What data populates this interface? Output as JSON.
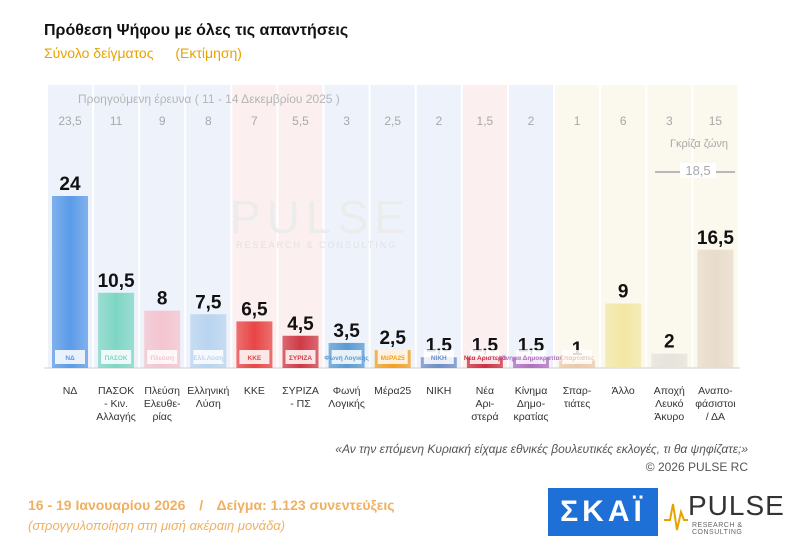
{
  "header": {
    "title": "Πρόθεση Ψήφου με όλες τις απαντήσεις",
    "subtitle_left": "Σύνολο δείγματος",
    "subtitle_right": "(Εκτίμηση)"
  },
  "previous_survey_label": "Προηγούμενη έρευνα ( 11 - 14 Δεκεμβρίου 2025 )",
  "grey_zone": {
    "label": "Γκρίζα ζώνη",
    "value": "18,5"
  },
  "watermark": {
    "word": "PULSE",
    "sub": "RESEARCH & CONSULTING"
  },
  "question": "«Αν την επόμενη Κυριακή είχαμε εθνικές βουλευτικές εκλογές, τι θα ψηφίζατε;»",
  "copyright": "© 2026 PULSE RC",
  "footer": {
    "dates": "16 - 19 Ιανουαρίου 2026",
    "separator": "/",
    "sample": "Δείγμα: 1.123 συνεντεύξεις",
    "note": "(στρογγυλοποίηση στη μισή ακέραιη μονάδα)"
  },
  "logos": {
    "skai": "ΣΚΑΪ",
    "pulse": "PULSE",
    "pulse_sub": "RESEARCH & CONSULTING"
  },
  "colors": {
    "accent_orange": "#e8a200",
    "band_blue": "#eef3fb",
    "band_cream": "#fbf8ee",
    "band_pink": "#fbeff0"
  },
  "chart_data": {
    "type": "bar",
    "title": "Πρόθεση Ψήφου με όλες τις απαντήσεις",
    "categories": [
      "ΝΔ",
      "ΠΑΣΟΚ - Κιν. Αλλαγής",
      "Πλεύση Ελευθε- ρίας",
      "Ελληνική Λύση",
      "ΚΚΕ",
      "ΣΥΡΙΖΑ - ΠΣ",
      "Φωνή Λογικής",
      "Μέρα25",
      "ΝΙΚΗ",
      "Νέα Αρι- στερά",
      "Κίνημα Δημο- κρατίας",
      "Σπαρ- τιάτες",
      "Άλλο",
      "Αποχή Λευκό Άκυρο",
      "Αναπο- φάσιστοι / ΔΑ"
    ],
    "category_lines": [
      [
        "ΝΔ"
      ],
      [
        "ΠΑΣΟΚ",
        "- Κιν.",
        "Αλλαγής"
      ],
      [
        "Πλεύση",
        "Ελευθε-",
        "ρίας"
      ],
      [
        "Ελληνική",
        "Λύση"
      ],
      [
        "ΚΚΕ"
      ],
      [
        "ΣΥΡΙΖΑ",
        "- ΠΣ"
      ],
      [
        "Φωνή",
        "Λογικής"
      ],
      [
        "Μέρα25"
      ],
      [
        "ΝΙΚΗ"
      ],
      [
        "Νέα",
        "Αρι-",
        "στερά"
      ],
      [
        "Κίνημα",
        "Δημο-",
        "κρατίας"
      ],
      [
        "Σπαρ-",
        "τιάτες"
      ],
      [
        "Άλλο"
      ],
      [
        "Αποχή",
        "Λευκό",
        "Άκυρο"
      ],
      [
        "Αναπο-",
        "φάσιστοι",
        "/ ΔΑ"
      ]
    ],
    "series": [
      {
        "name": "16 - 19 Ιανουαρίου 2026",
        "values": [
          24,
          10.5,
          8,
          7.5,
          6.5,
          4.5,
          3.5,
          2.5,
          1.5,
          1.5,
          1.5,
          1,
          9,
          2,
          16.5
        ]
      },
      {
        "name": "Προηγούμενη έρευνα ( 11 - 14 Δεκεμβρίου 2025 )",
        "values": [
          23.5,
          11,
          9,
          8,
          7,
          5.5,
          3,
          2.5,
          2,
          1.5,
          2,
          1,
          6,
          3,
          15
        ]
      }
    ],
    "value_labels": [
      "24",
      "10,5",
      "8",
      "7,5",
      "6,5",
      "4,5",
      "3,5",
      "2,5",
      "1,5",
      "1,5",
      "1,5",
      "1",
      "9",
      "2",
      "16,5"
    ],
    "previous_labels": [
      "23,5",
      "11",
      "9",
      "8",
      "7",
      "5,5",
      "3",
      "2,5",
      "2",
      "1,5",
      "2",
      "1",
      "6",
      "3",
      "15"
    ],
    "bar_colors": [
      "#5b9be8",
      "#7fd6c4",
      "#f4c4cf",
      "#b9d4f0",
      "#e84545",
      "#cf3a46",
      "#5a9bd3",
      "#f2a020",
      "#6e8cc8",
      "#cc3040",
      "#b06fc0",
      "#ecc8a8",
      "#f3e7a4",
      "#e6e3dc",
      "#e8dccb"
    ],
    "party_logos": [
      "ΝΔ",
      "ΠΑΣΟΚ",
      "Πλεύση",
      "Ελλ.Λύση",
      "ΚΚΕ",
      "ΣΥΡΙΖΑ",
      "Φωνή Λογικής",
      "ΜέΡΑ25",
      "ΝΙΚΗ",
      "Νέα Αριστερά",
      "Κίνημα Δημοκρατίας",
      "Σπαρτιάτες"
    ],
    "ylim": [
      0,
      25
    ],
    "grid": false
  }
}
